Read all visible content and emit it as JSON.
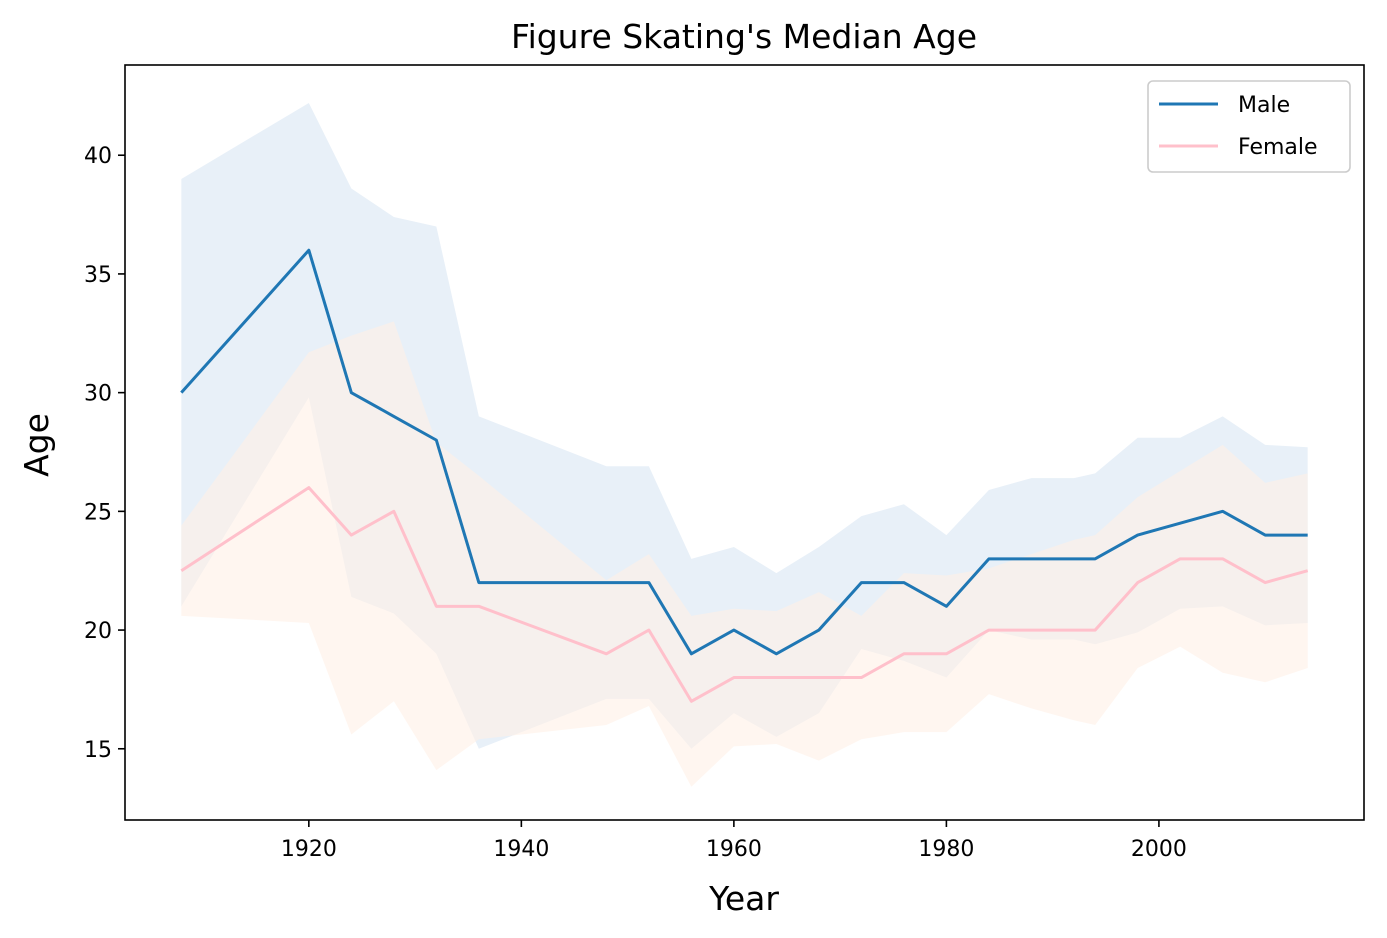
{
  "chart_data": {
    "type": "line",
    "title": "Figure Skating's Median Age",
    "xlabel": "Year",
    "ylabel": "Age",
    "xlim": [
      1902.7,
      2019.3
    ],
    "ylim": [
      12,
      43.8
    ],
    "xticks": [
      1920,
      1940,
      1960,
      1980,
      2000
    ],
    "yticks": [
      15,
      20,
      25,
      30,
      35,
      40
    ],
    "grid": false,
    "legend_position": "top-right",
    "x": [
      1908,
      1920,
      1924,
      1928,
      1932,
      1936,
      1948,
      1952,
      1956,
      1960,
      1964,
      1968,
      1972,
      1976,
      1980,
      1984,
      1988,
      1992,
      1994,
      1998,
      2002,
      2006,
      2010,
      2014
    ],
    "series": [
      {
        "name": "Male",
        "color": "#1f77b4",
        "band_color": "#e8f0f8",
        "values": [
          30,
          36,
          30,
          29,
          28,
          22,
          22,
          22,
          19,
          20,
          19,
          20,
          22,
          22,
          21,
          23,
          23,
          23,
          23,
          24,
          24.5,
          25,
          24,
          24
        ],
        "band_upper": [
          39,
          42.2,
          38.6,
          37.4,
          37,
          29,
          26.9,
          26.9,
          23,
          23.5,
          22.4,
          23.5,
          24.8,
          25.3,
          24,
          25.9,
          26.4,
          26.4,
          26.6,
          28.1,
          28.1,
          29,
          27.8,
          27.7
        ],
        "band_lower": [
          21,
          29.8,
          21.4,
          20.7,
          19,
          15,
          17.1,
          17.1,
          15,
          16.5,
          15.5,
          16.5,
          19.2,
          18.7,
          18,
          20,
          19.6,
          19.6,
          19.4,
          19.9,
          20.9,
          21,
          20.2,
          20.3
        ]
      },
      {
        "name": "Female",
        "color": "#ffc0cb",
        "band_color": "#fff0e6",
        "values": [
          22.5,
          26,
          24,
          25,
          21,
          21,
          19,
          20,
          17,
          18,
          18,
          18,
          18,
          19,
          19,
          20,
          20,
          20,
          20,
          22,
          23,
          23,
          22,
          22.5
        ],
        "band_upper": [
          24.4,
          31.7,
          32.4,
          33,
          27.9,
          26.5,
          22.1,
          23.2,
          20.6,
          20.9,
          20.8,
          21.6,
          20.6,
          22.4,
          22.3,
          22.6,
          23.2,
          23.8,
          24,
          25.6,
          26.7,
          27.8,
          26.2,
          26.6
        ],
        "band_lower": [
          20.6,
          20.3,
          15.6,
          17,
          14.1,
          15.4,
          16,
          16.8,
          13.4,
          15.1,
          15.2,
          14.5,
          15.4,
          15.7,
          15.7,
          17.3,
          16.7,
          16.2,
          16,
          18.4,
          19.3,
          18.2,
          17.8,
          18.4
        ]
      }
    ]
  }
}
